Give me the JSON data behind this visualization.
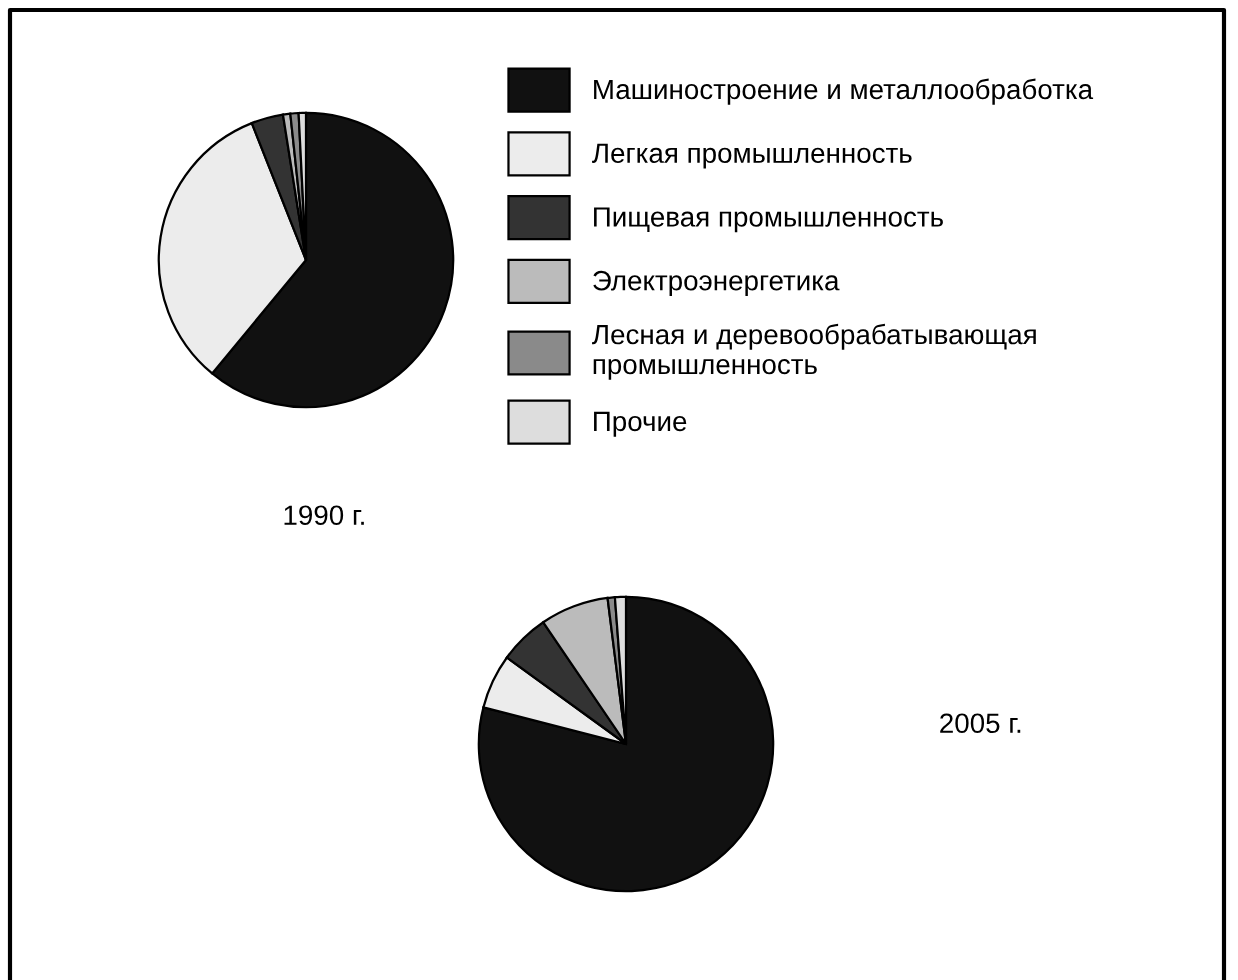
{
  "chart_data": [
    {
      "type": "pie",
      "title": "1990 г.",
      "categories": [
        "Машиностроение и металлообработка",
        "Легкая промышленность",
        "Пищевая промышленность",
        "Электроэнергетика",
        "Лесная и деревообрабатывающая промышленность",
        "Прочие"
      ],
      "values": [
        61,
        33,
        3.5,
        0.8,
        0.9,
        0.8
      ],
      "colors": [
        "#111111",
        "#ececec",
        "#333333",
        "#bbbbbb",
        "#8a8a8a",
        "#dddddd"
      ],
      "legend": "right"
    },
    {
      "type": "pie",
      "title": "2005 г.",
      "categories": [
        null,
        null,
        null,
        null,
        null,
        null
      ],
      "values": [
        79,
        6,
        5.5,
        7.5,
        0.8,
        1.2
      ],
      "colors": [
        "#111111",
        "#ececec",
        "#333333",
        "#bbbbbb",
        "#8a8a8a",
        "#dddddd"
      ],
      "legend": false
    }
  ]
}
